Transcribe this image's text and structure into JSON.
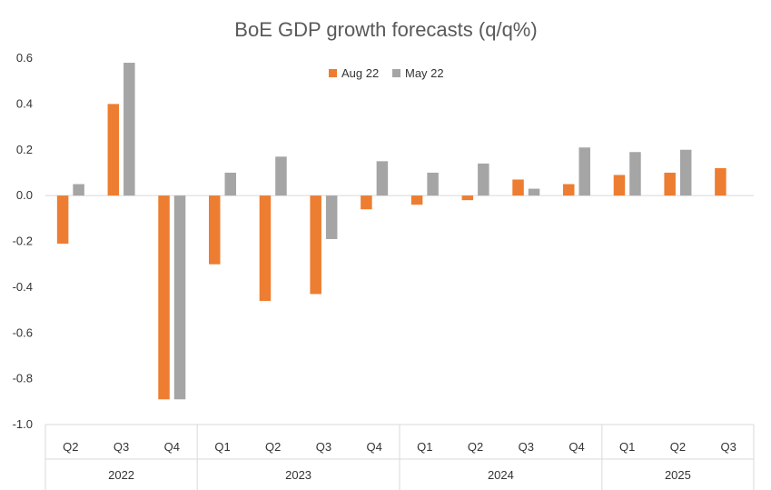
{
  "chart_data": {
    "type": "bar",
    "title": "BoE GDP growth forecasts (q/q%)",
    "xlabel": "",
    "ylabel": "",
    "ylim": [
      -1.0,
      0.6
    ],
    "yticks": [
      "0.6",
      "0.4",
      "0.2",
      "0.0",
      "-0.2",
      "-0.4",
      "-0.6",
      "-0.8",
      "-1.0"
    ],
    "ytick_values": [
      0.6,
      0.4,
      0.2,
      0.0,
      -0.2,
      -0.4,
      -0.6,
      -0.8,
      -1.0
    ],
    "grid": false,
    "legend_position": "top-center",
    "categories": [
      "Q2",
      "Q3",
      "Q4",
      "Q1",
      "Q2",
      "Q3",
      "Q4",
      "Q1",
      "Q2",
      "Q3",
      "Q4",
      "Q1",
      "Q2",
      "Q3"
    ],
    "groups": [
      {
        "label": "2022",
        "count": 3
      },
      {
        "label": "2023",
        "count": 4
      },
      {
        "label": "2024",
        "count": 4
      },
      {
        "label": "2025",
        "count": 3
      }
    ],
    "series": [
      {
        "name": "Aug 22",
        "color": "#ED7D31",
        "values": [
          -0.21,
          0.4,
          -0.89,
          -0.3,
          -0.46,
          -0.43,
          -0.06,
          -0.04,
          -0.02,
          0.07,
          0.05,
          0.09,
          0.1,
          0.12
        ]
      },
      {
        "name": "May 22",
        "color": "#A5A5A5",
        "values": [
          0.05,
          0.58,
          -0.89,
          0.1,
          0.17,
          -0.19,
          0.15,
          0.1,
          0.14,
          0.03,
          0.21,
          0.19,
          0.2,
          null
        ]
      }
    ]
  }
}
